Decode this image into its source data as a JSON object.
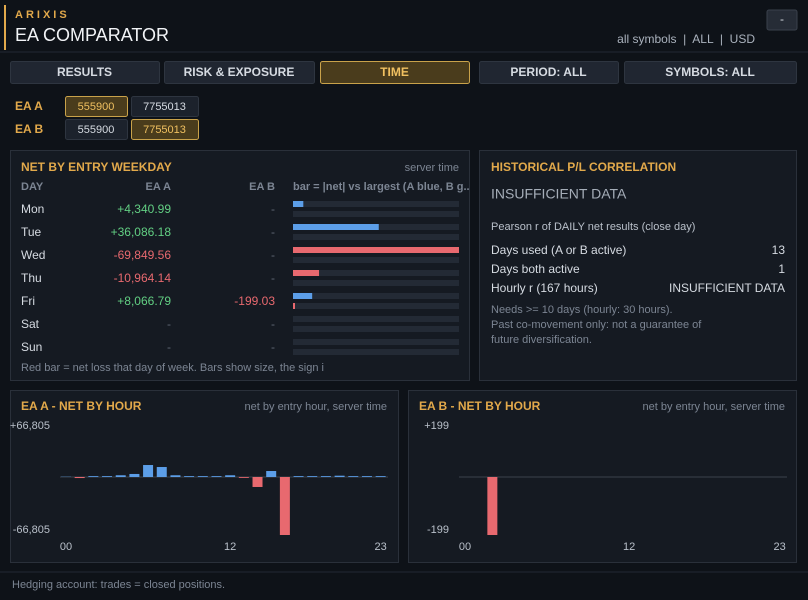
{
  "header": {
    "brand": "ARIXIS",
    "title": "EA COMPARATOR",
    "filters": "all symbols  |  ALL  |  USD",
    "button": "-"
  },
  "tabs": [
    {
      "label": "RESULTS",
      "active": false
    },
    {
      "label": "RISK & EXPOSURE",
      "active": false
    },
    {
      "label": "TIME",
      "active": true
    },
    {
      "label": "PERIOD: ALL",
      "active": false
    },
    {
      "label": "SYMBOLS: ALL",
      "active": false
    }
  ],
  "accounts": [
    {
      "name": "EA A",
      "ids": [
        "555900",
        "7755013"
      ],
      "selected": 0
    },
    {
      "name": "EA B",
      "ids": [
        "555900",
        "7755013"
      ],
      "selected": 1
    }
  ],
  "weekday": {
    "title": "NET BY ENTRY WEEKDAY",
    "note": "server time",
    "columns": [
      "DAY",
      "EA A",
      "EA B",
      "bar = |net| vs largest (A blue, B g.."
    ],
    "rows": [
      {
        "day": "Mon",
        "a": 4340.99,
        "a_label": "+4,340.99",
        "b": null,
        "b_label": "-"
      },
      {
        "day": "Tue",
        "a": 36086.18,
        "a_label": "+36,086.18",
        "b": null,
        "b_label": "-"
      },
      {
        "day": "Wed",
        "a": -69849.56,
        "a_label": "-69,849.56",
        "b": null,
        "b_label": "-"
      },
      {
        "day": "Thu",
        "a": -10964.14,
        "a_label": "-10,964.14",
        "b": null,
        "b_label": "-"
      },
      {
        "day": "Fri",
        "a": 8066.79,
        "a_label": "+8,066.79",
        "b": -199.03,
        "b_label": "-199.03"
      },
      {
        "day": "Sat",
        "a": null,
        "a_label": "-",
        "b": null,
        "b_label": "-"
      },
      {
        "day": "Sun",
        "a": null,
        "a_label": "-",
        "b": null,
        "b_label": "-"
      }
    ],
    "footnote": "Red bar = net loss that day of week. Bars show size, the sign i"
  },
  "correlation": {
    "title": "HISTORICAL P/L CORRELATION",
    "status": "INSUFFICIENT DATA",
    "description": "Pearson r of DAILY net results (close day)",
    "rows": [
      [
        "Days used (A or B active)",
        "13"
      ],
      [
        "Days both active",
        "1"
      ],
      [
        "Hourly r (167 hours)",
        "INSUFFICIENT DATA"
      ]
    ],
    "notes": [
      "Needs >= 10 days (hourly: 30 hours).",
      "Past co-movement only: not a guarantee of",
      "future diversification."
    ]
  },
  "charts": [
    {
      "type": "bar",
      "title": "EA A - NET BY HOUR",
      "subtitle": "net by entry hour, server time",
      "categories": [
        "00",
        null,
        null,
        null,
        null,
        null,
        null,
        null,
        null,
        null,
        null,
        null,
        "12",
        null,
        null,
        null,
        null,
        null,
        null,
        null,
        null,
        null,
        null,
        "23"
      ],
      "values": [
        300,
        -1200,
        1000,
        1000,
        2000,
        3500,
        13800,
        11500,
        2000,
        1000,
        1000,
        1000,
        2000,
        -1000,
        -11500,
        6900,
        -66805,
        1000,
        1000,
        1000,
        1500,
        1000,
        1000,
        1000
      ],
      "ylim": [
        -66805,
        66805
      ],
      "yticks": [
        {
          "value": 66805,
          "label": "+66,805"
        },
        {
          "value": -66805,
          "label": "-66,805"
        }
      ],
      "pos_color": "#5c9ee8",
      "neg_color": "#e8696f"
    },
    {
      "type": "bar",
      "title": "EA B - NET BY HOUR",
      "subtitle": "net by entry hour, server time",
      "categories": [
        "00",
        null,
        null,
        null,
        null,
        null,
        null,
        null,
        null,
        null,
        null,
        null,
        "12",
        null,
        null,
        null,
        null,
        null,
        null,
        null,
        null,
        null,
        null,
        "23"
      ],
      "values": [
        0,
        0,
        -199,
        0,
        0,
        0,
        0,
        0,
        0,
        0,
        0,
        0,
        0,
        0,
        0,
        0,
        0,
        0,
        0,
        0,
        0,
        0,
        0,
        0
      ],
      "ylim": [
        -199,
        199
      ],
      "yticks": [
        {
          "value": 199,
          "label": "+199"
        },
        {
          "value": -199,
          "label": "-199"
        }
      ],
      "pos_color": "#5c9ee8",
      "neg_color": "#e8696f"
    }
  ],
  "footer": [
    "Hedging account: trades = closed positions."
  ]
}
